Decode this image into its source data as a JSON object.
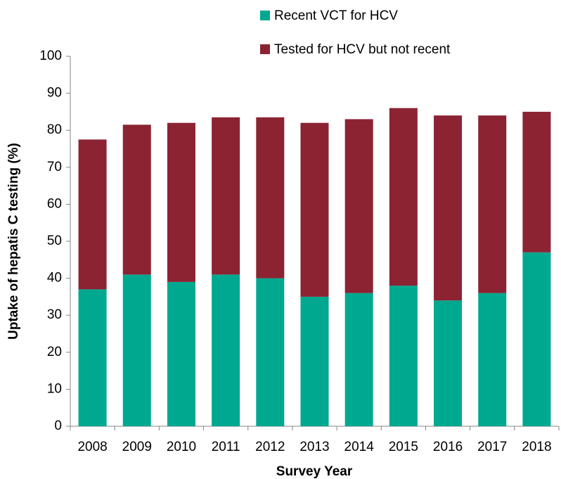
{
  "chart_data": {
    "type": "stacked_bar",
    "xlabel": "Survey Year",
    "ylabel": "Uptake of hepatis C testing (%)",
    "categories": [
      "2008",
      "2009",
      "2010",
      "2011",
      "2012",
      "2013",
      "2014",
      "2015",
      "2016",
      "2017",
      "2018"
    ],
    "series": [
      {
        "name": "Recent VCT for HCV",
        "color": "#00a88f",
        "values": [
          37,
          41,
          39,
          41,
          40,
          35,
          36,
          38,
          34,
          36,
          47
        ]
      },
      {
        "name": "Tested for HCV but not recent",
        "color": "#8b2332",
        "values": [
          40.5,
          40.5,
          43,
          42.5,
          43.5,
          47,
          47,
          48,
          50,
          48,
          38
        ]
      }
    ],
    "ylim": [
      0,
      100
    ],
    "yticks": [
      0,
      10,
      20,
      30,
      40,
      50,
      60,
      70,
      80,
      90,
      100
    ],
    "grid": false,
    "legend": "top"
  }
}
